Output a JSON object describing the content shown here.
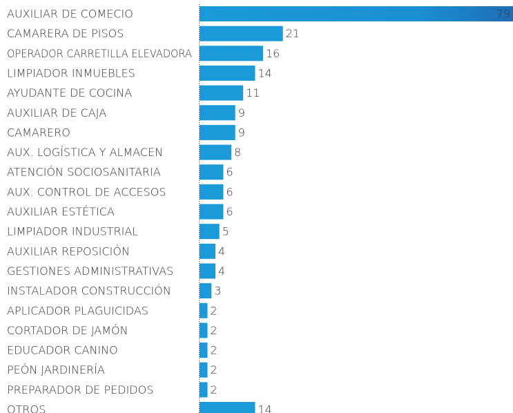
{
  "chart_data": {
    "type": "bar",
    "orientation": "horizontal",
    "categories": [
      "AUXILIAR DE COMECIO",
      "CAMARERA DE PISOS",
      "OPERADOR CARRETILLA ELEVADORA",
      "LIMPIADOR INMUEBLES",
      "AYUDANTE DE COCINA",
      "AUXILIAR DE CAJA",
      "CAMARERO",
      "AUX. LOGÍSTICA Y ALMACEN",
      "ATENCIÓN SOCIOSANITARIA",
      "AUX. CONTROL DE ACCESOS",
      "AUXILIAR ESTÉTICA",
      "LIMPIADOR INDUSTRIAL",
      "AUXILIAR REPOSICIÓN",
      "GESTIONES ADMINISTRATIVAS",
      "INSTALADOR CONSTRUCCIÓN",
      "APLICADOR PLAGUICIDAS",
      "CORTADOR DE JAMÓN",
      "EDUCADOR CANINO",
      "PEÓN JARDINERÍA",
      "PREPARADOR DE PEDIDOS",
      "OTROS"
    ],
    "values": [
      79,
      21,
      16,
      14,
      11,
      9,
      9,
      8,
      6,
      6,
      6,
      5,
      4,
      4,
      3,
      2,
      2,
      2,
      2,
      2,
      14
    ],
    "color": "#1a9ad8",
    "xlim": [
      0,
      79
    ]
  }
}
